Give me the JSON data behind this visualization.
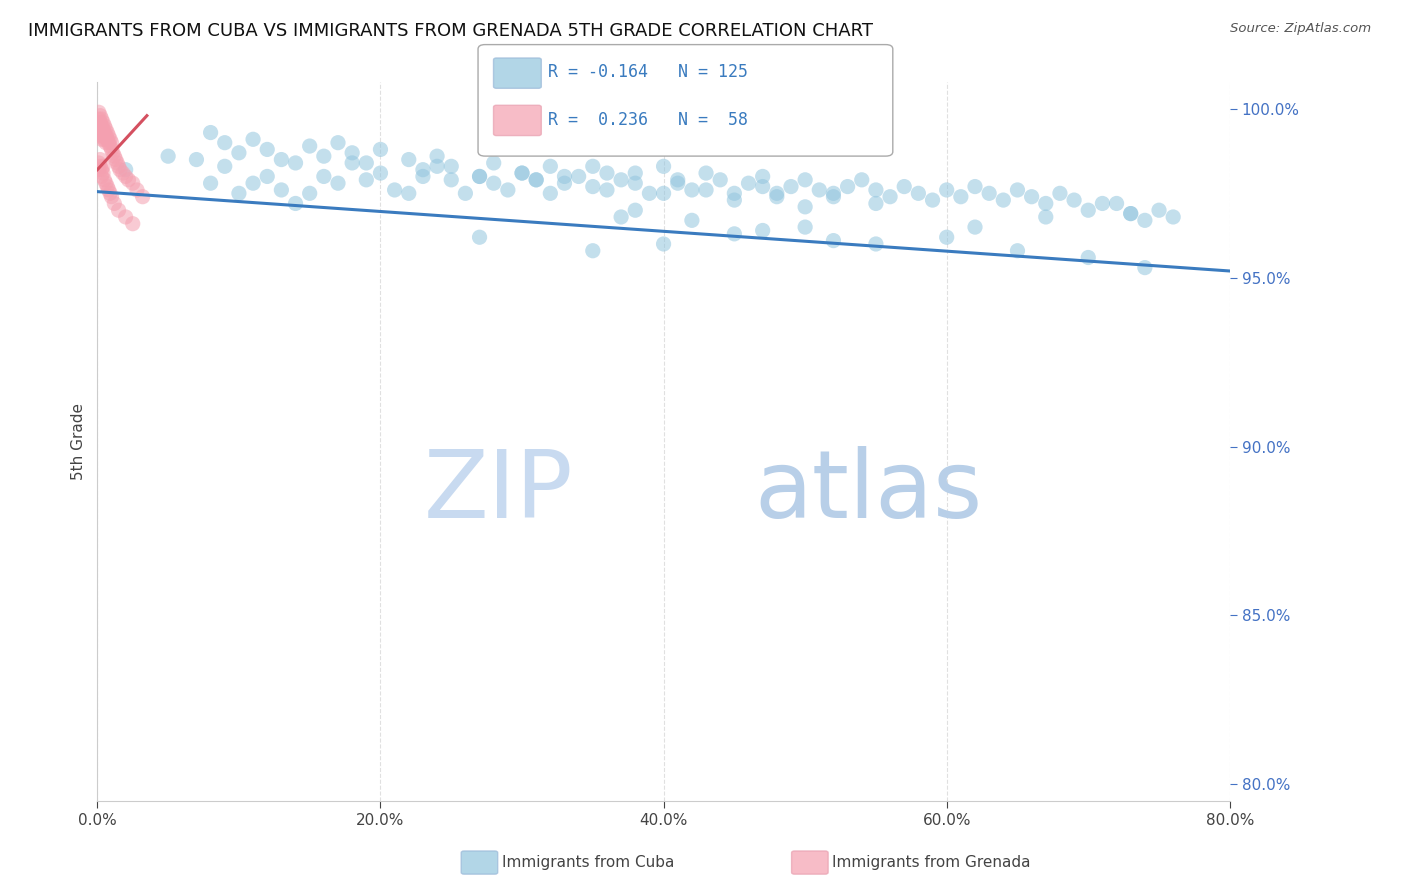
{
  "title": "IMMIGRANTS FROM CUBA VS IMMIGRANTS FROM GRENADA 5TH GRADE CORRELATION CHART",
  "source_text": "Source: ZipAtlas.com",
  "ylabel": "5th Grade",
  "xlim": [
    0.0,
    0.8
  ],
  "ylim": [
    0.795,
    1.008
  ],
  "xtick_values": [
    0.0,
    0.2,
    0.4,
    0.6,
    0.8
  ],
  "ytick_values": [
    0.8,
    0.85,
    0.9,
    0.95,
    1.0
  ],
  "blue_scatter_x": [
    0.02,
    0.05,
    0.07,
    0.08,
    0.09,
    0.1,
    0.11,
    0.12,
    0.13,
    0.14,
    0.14,
    0.15,
    0.16,
    0.17,
    0.18,
    0.19,
    0.2,
    0.21,
    0.22,
    0.23,
    0.24,
    0.25,
    0.26,
    0.27,
    0.28,
    0.29,
    0.3,
    0.31,
    0.32,
    0.33,
    0.34,
    0.35,
    0.36,
    0.37,
    0.38,
    0.39,
    0.4,
    0.41,
    0.42,
    0.43,
    0.44,
    0.45,
    0.46,
    0.47,
    0.48,
    0.49,
    0.5,
    0.51,
    0.52,
    0.53,
    0.54,
    0.55,
    0.56,
    0.57,
    0.58,
    0.59,
    0.6,
    0.61,
    0.62,
    0.63,
    0.64,
    0.65,
    0.66,
    0.67,
    0.68,
    0.69,
    0.7,
    0.72,
    0.73,
    0.74,
    0.75,
    0.76,
    0.08,
    0.09,
    0.1,
    0.11,
    0.12,
    0.13,
    0.15,
    0.16,
    0.17,
    0.18,
    0.19,
    0.2,
    0.22,
    0.23,
    0.24,
    0.25,
    0.27,
    0.28,
    0.3,
    0.31,
    0.32,
    0.33,
    0.35,
    0.36,
    0.38,
    0.4,
    0.41,
    0.43,
    0.45,
    0.47,
    0.48,
    0.5,
    0.52,
    0.55,
    0.37,
    0.62,
    0.67,
    0.71,
    0.73,
    0.27,
    0.35,
    0.4,
    0.45,
    0.5,
    0.55,
    0.6,
    0.65,
    0.7,
    0.74,
    0.38,
    0.42,
    0.47,
    0.52
  ],
  "blue_scatter_y": [
    0.982,
    0.986,
    0.985,
    0.978,
    0.983,
    0.975,
    0.978,
    0.98,
    0.976,
    0.984,
    0.972,
    0.975,
    0.98,
    0.978,
    0.984,
    0.979,
    0.981,
    0.976,
    0.975,
    0.98,
    0.983,
    0.979,
    0.975,
    0.98,
    0.978,
    0.976,
    0.981,
    0.979,
    0.975,
    0.978,
    0.98,
    0.983,
    0.976,
    0.979,
    0.981,
    0.975,
    0.983,
    0.978,
    0.976,
    0.981,
    0.979,
    0.975,
    0.978,
    0.98,
    0.975,
    0.977,
    0.979,
    0.976,
    0.974,
    0.977,
    0.979,
    0.976,
    0.974,
    0.977,
    0.975,
    0.973,
    0.976,
    0.974,
    0.977,
    0.975,
    0.973,
    0.976,
    0.974,
    0.972,
    0.975,
    0.973,
    0.97,
    0.972,
    0.969,
    0.967,
    0.97,
    0.968,
    0.993,
    0.99,
    0.987,
    0.991,
    0.988,
    0.985,
    0.989,
    0.986,
    0.99,
    0.987,
    0.984,
    0.988,
    0.985,
    0.982,
    0.986,
    0.983,
    0.98,
    0.984,
    0.981,
    0.979,
    0.983,
    0.98,
    0.977,
    0.981,
    0.978,
    0.975,
    0.979,
    0.976,
    0.973,
    0.977,
    0.974,
    0.971,
    0.975,
    0.972,
    0.968,
    0.965,
    0.968,
    0.972,
    0.969,
    0.962,
    0.958,
    0.96,
    0.963,
    0.965,
    0.96,
    0.962,
    0.958,
    0.956,
    0.953,
    0.97,
    0.967,
    0.964,
    0.961
  ],
  "pink_scatter_x": [
    0.001,
    0.001,
    0.001,
    0.002,
    0.002,
    0.002,
    0.002,
    0.003,
    0.003,
    0.003,
    0.003,
    0.004,
    0.004,
    0.004,
    0.005,
    0.005,
    0.005,
    0.006,
    0.006,
    0.006,
    0.007,
    0.007,
    0.008,
    0.008,
    0.009,
    0.009,
    0.01,
    0.01,
    0.011,
    0.012,
    0.013,
    0.014,
    0.015,
    0.016,
    0.018,
    0.02,
    0.022,
    0.025,
    0.028,
    0.032,
    0.001,
    0.001,
    0.002,
    0.002,
    0.003,
    0.003,
    0.004,
    0.004,
    0.005,
    0.006,
    0.007,
    0.008,
    0.009,
    0.01,
    0.012,
    0.015,
    0.02,
    0.025
  ],
  "pink_scatter_y": [
    0.999,
    0.997,
    0.995,
    0.998,
    0.996,
    0.994,
    0.992,
    0.997,
    0.995,
    0.993,
    0.991,
    0.996,
    0.994,
    0.992,
    0.995,
    0.993,
    0.991,
    0.994,
    0.992,
    0.99,
    0.993,
    0.991,
    0.992,
    0.99,
    0.991,
    0.989,
    0.99,
    0.988,
    0.987,
    0.986,
    0.985,
    0.984,
    0.983,
    0.982,
    0.981,
    0.98,
    0.979,
    0.978,
    0.976,
    0.974,
    0.984,
    0.982,
    0.985,
    0.983,
    0.982,
    0.98,
    0.983,
    0.981,
    0.979,
    0.978,
    0.977,
    0.976,
    0.975,
    0.974,
    0.972,
    0.97,
    0.968,
    0.966
  ],
  "blue_line_x": [
    0.0,
    0.8
  ],
  "blue_line_y": [
    0.9755,
    0.952
  ],
  "pink_line_x": [
    0.0,
    0.035
  ],
  "pink_line_y": [
    0.982,
    0.998
  ],
  "blue_color": "#92c5de",
  "pink_color": "#f4a0b0",
  "blue_line_color": "#3a7bbf",
  "pink_line_color": "#d45060",
  "watermark_color": "#dce8f5",
  "background_color": "#ffffff",
  "grid_color": "#cccccc",
  "title_fontsize": 13,
  "axis_label_fontsize": 11,
  "tick_fontsize": 11,
  "scatter_size": 120,
  "scatter_alpha": 0.55,
  "legend_blue_label_r": "R = -0.164",
  "legend_blue_label_n": "N = 125",
  "legend_pink_label_r": "R =  0.236",
  "legend_pink_label_n": "N =  58"
}
